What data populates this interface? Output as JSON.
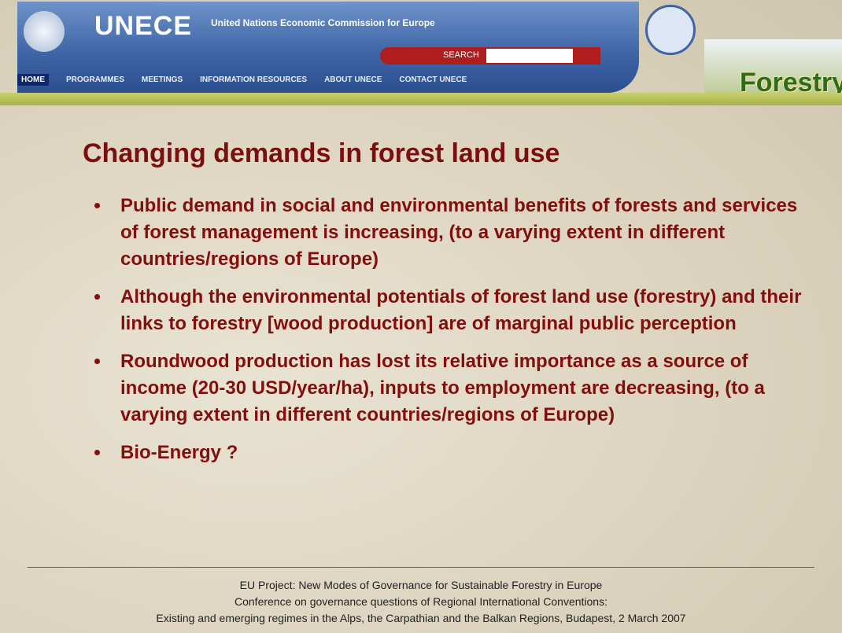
{
  "header": {
    "org": "UNECE",
    "org_full": "United Nations Economic Commission for Europe",
    "search": "SEARCH",
    "nav": [
      "HOME",
      "PROGRAMMES",
      "MEETINGS",
      "INFORMATION RESOURCES",
      "ABOUT UNECE",
      "CONTACT UNECE"
    ],
    "logo": "Forestry"
  },
  "slide": {
    "title": "Changing demands in forest land use",
    "bullets": [
      "Public demand in social and environmental benefits of forests and services of forest management is increasing, (to a varying extent in different countries/regions of Europe)",
      "Although the environmental potentials of forest land use (forestry) and their links to forestry [wood production] are of marginal public perception",
      "Roundwood production has lost its relative importance as a source of income (20-30 USD/year/ha), inputs to employment are decreasing, (to a varying extent in different countries/regions of Europe)",
      "Bio-Energy ?"
    ]
  },
  "footer": [
    "EU Project: New Modes of Governance for Sustainable Forestry in Europe",
    "Conference on governance questions of Regional International Conventions:",
    "Existing and emerging regimes in the Alps, the Carpathian and the Balkan Regions, Budapest, 2 March 2007"
  ]
}
